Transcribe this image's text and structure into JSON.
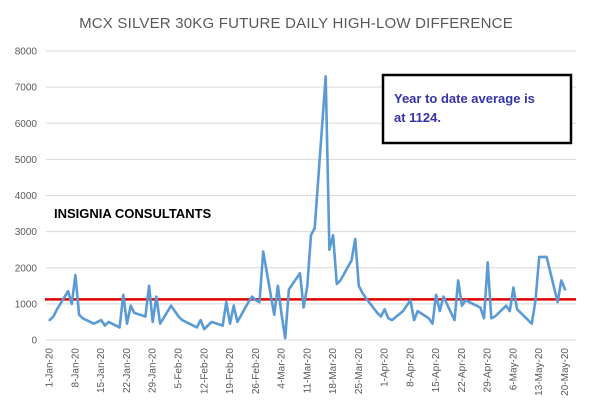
{
  "chart_data": {
    "type": "line",
    "title": "MCX SILVER 30KG FUTURE DAILY HIGH-LOW DIFFERENCE",
    "xlabel": "",
    "ylabel": "",
    "ylim": [
      0,
      8000
    ],
    "yticks": [
      "0",
      "1000",
      "2000",
      "3000",
      "4000",
      "5000",
      "6000",
      "7000",
      "8000"
    ],
    "grid": true,
    "x_tick_labels": [
      "1-Jan-20",
      "8-Jan-20",
      "15-Jan-20",
      "22-Jan-20",
      "29-Jan-20",
      "5-Feb-20",
      "12-Feb-20",
      "19-Feb-20",
      "26-Feb-20",
      "4-Mar-20",
      "11-Mar-20",
      "18-Mar-20",
      "25-Mar-20",
      "1-Apr-20",
      "8-Apr-20",
      "15-Apr-20",
      "22-Apr-20",
      "29-Apr-20",
      "6-May-20",
      "13-May-20",
      "20-May-20"
    ],
    "series": [
      {
        "color": "#5b9bd5",
        "points": [
          [
            "2020-01-01",
            550
          ],
          [
            "2020-01-02",
            650
          ],
          [
            "2020-01-03",
            850
          ],
          [
            "2020-01-06",
            1350
          ],
          [
            "2020-01-07",
            1000
          ],
          [
            "2020-01-08",
            1800
          ],
          [
            "2020-01-09",
            700
          ],
          [
            "2020-01-10",
            600
          ],
          [
            "2020-01-13",
            450
          ],
          [
            "2020-01-14",
            500
          ],
          [
            "2020-01-15",
            550
          ],
          [
            "2020-01-16",
            400
          ],
          [
            "2020-01-17",
            500
          ],
          [
            "2020-01-20",
            350
          ],
          [
            "2020-01-21",
            1250
          ],
          [
            "2020-01-22",
            450
          ],
          [
            "2020-01-23",
            950
          ],
          [
            "2020-01-24",
            750
          ],
          [
            "2020-01-27",
            650
          ],
          [
            "2020-01-28",
            1500
          ],
          [
            "2020-01-29",
            500
          ],
          [
            "2020-01-30",
            1200
          ],
          [
            "2020-01-31",
            450
          ],
          [
            "2020-02-03",
            950
          ],
          [
            "2020-02-04",
            800
          ],
          [
            "2020-02-05",
            650
          ],
          [
            "2020-02-06",
            550
          ],
          [
            "2020-02-07",
            500
          ],
          [
            "2020-02-10",
            350
          ],
          [
            "2020-02-11",
            550
          ],
          [
            "2020-02-12",
            300
          ],
          [
            "2020-02-13",
            400
          ],
          [
            "2020-02-14",
            500
          ],
          [
            "2020-02-17",
            400
          ],
          [
            "2020-02-18",
            1050
          ],
          [
            "2020-02-19",
            450
          ],
          [
            "2020-02-20",
            950
          ],
          [
            "2020-02-21",
            500
          ],
          [
            "2020-02-24",
            1050
          ],
          [
            "2020-02-25",
            1200
          ],
          [
            "2020-02-26",
            1100
          ],
          [
            "2020-02-27",
            1050
          ],
          [
            "2020-02-28",
            2450
          ],
          [
            "2020-03-02",
            700
          ],
          [
            "2020-03-03",
            1500
          ],
          [
            "2020-03-04",
            700
          ],
          [
            "2020-03-05",
            50
          ],
          [
            "2020-03-06",
            1400
          ],
          [
            "2020-03-09",
            1850
          ],
          [
            "2020-03-10",
            900
          ],
          [
            "2020-03-11",
            1500
          ],
          [
            "2020-03-12",
            2900
          ],
          [
            "2020-03-13",
            3100
          ],
          [
            "2020-03-16",
            7300
          ],
          [
            "2020-03-17",
            2500
          ],
          [
            "2020-03-18",
            2900
          ],
          [
            "2020-03-19",
            1550
          ],
          [
            "2020-03-20",
            1650
          ],
          [
            "2020-03-23",
            2200
          ],
          [
            "2020-03-24",
            2800
          ],
          [
            "2020-03-25",
            1500
          ],
          [
            "2020-03-26",
            1300
          ],
          [
            "2020-03-27",
            1150
          ],
          [
            "2020-03-30",
            750
          ],
          [
            "2020-03-31",
            650
          ],
          [
            "2020-04-01",
            850
          ],
          [
            "2020-04-02",
            600
          ],
          [
            "2020-04-03",
            550
          ],
          [
            "2020-04-06",
            800
          ],
          [
            "2020-04-07",
            950
          ],
          [
            "2020-04-08",
            1100
          ],
          [
            "2020-04-09",
            550
          ],
          [
            "2020-04-10",
            800
          ],
          [
            "2020-04-13",
            600
          ],
          [
            "2020-04-14",
            450
          ],
          [
            "2020-04-15",
            1250
          ],
          [
            "2020-04-16",
            800
          ],
          [
            "2020-04-17",
            1200
          ],
          [
            "2020-04-20",
            550
          ],
          [
            "2020-04-21",
            1650
          ],
          [
            "2020-04-22",
            950
          ],
          [
            "2020-04-23",
            1100
          ],
          [
            "2020-04-24",
            1050
          ],
          [
            "2020-04-27",
            900
          ],
          [
            "2020-04-28",
            600
          ],
          [
            "2020-04-29",
            2150
          ],
          [
            "2020-04-30",
            600
          ],
          [
            "2020-05-01",
            650
          ],
          [
            "2020-05-04",
            950
          ],
          [
            "2020-05-05",
            800
          ],
          [
            "2020-05-06",
            1450
          ],
          [
            "2020-05-07",
            850
          ],
          [
            "2020-05-08",
            750
          ],
          [
            "2020-05-11",
            450
          ],
          [
            "2020-05-12",
            1100
          ],
          [
            "2020-05-13",
            2300
          ],
          [
            "2020-05-14",
            2300
          ],
          [
            "2020-05-15",
            2300
          ],
          [
            "2020-05-18",
            1050
          ],
          [
            "2020-05-19",
            1650
          ],
          [
            "2020-05-20",
            1400
          ]
        ]
      }
    ],
    "reference_lines": [
      {
        "y": 1124,
        "color": "#e00000"
      }
    ]
  },
  "annotation": {
    "line1": "Year to date average is",
    "line2": "at 1124."
  },
  "watermark": "INSIGNIA CONSULTANTS"
}
